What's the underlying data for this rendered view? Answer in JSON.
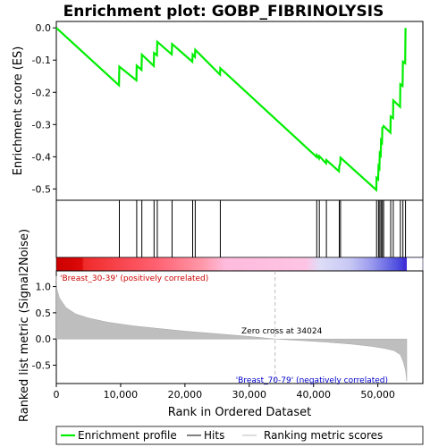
{
  "chart_data": {
    "type": "line",
    "title": "Enrichment plot: GOBP_FIBRINOLYSIS",
    "xlabel": "Rank in Ordered Dataset",
    "ylabel_top": "Enrichment score (ES)",
    "ylabel_bottom": "Ranked list metric (Signal2Noise)",
    "x_range": [
      0,
      57000
    ],
    "x_ticks": [
      0,
      10000,
      20000,
      30000,
      40000,
      50000
    ],
    "x_tick_labels": [
      "0",
      "10,000",
      "20,000",
      "30,000",
      "40,000",
      "50,000"
    ],
    "es_range": [
      -0.535,
      0.02
    ],
    "es_ticks": [
      0.0,
      -0.1,
      -0.2,
      -0.3,
      -0.4,
      -0.5
    ],
    "es_tick_labels": [
      "0.0",
      "-0.1",
      "-0.2",
      "-0.3",
      "-0.4",
      "-0.5"
    ],
    "metric_range": [
      -0.85,
      1.3
    ],
    "metric_ticks": [
      1.0,
      0.5,
      0.0,
      -0.5
    ],
    "metric_tick_labels": [
      "1.0",
      "0.5",
      "0.0",
      "-0.5"
    ],
    "total_ranks": 54500,
    "hits": [
      9800,
      12500,
      13300,
      15200,
      15700,
      18000,
      21200,
      21600,
      25500,
      40500,
      40900,
      42000,
      44000,
      44200,
      49800,
      50100,
      50300,
      50500,
      50700,
      50900,
      52000,
      52400,
      53500,
      53900,
      54300
    ],
    "es_curve": [
      [
        0,
        0.0
      ],
      [
        9750,
        -0.178
      ],
      [
        9800,
        -0.12
      ],
      [
        12450,
        -0.163
      ],
      [
        12500,
        -0.117
      ],
      [
        13250,
        -0.13
      ],
      [
        13300,
        -0.083
      ],
      [
        15150,
        -0.118
      ],
      [
        15200,
        -0.078
      ],
      [
        15650,
        -0.085
      ],
      [
        15700,
        -0.043
      ],
      [
        17950,
        -0.082
      ],
      [
        18000,
        -0.05
      ],
      [
        21150,
        -0.105
      ],
      [
        21200,
        -0.082
      ],
      [
        21550,
        -0.09
      ],
      [
        21600,
        -0.068
      ],
      [
        25450,
        -0.145
      ],
      [
        25500,
        -0.125
      ],
      [
        40450,
        -0.4
      ],
      [
        40500,
        -0.395
      ],
      [
        40850,
        -0.405
      ],
      [
        40900,
        -0.398
      ],
      [
        41950,
        -0.42
      ],
      [
        42000,
        -0.41
      ],
      [
        43950,
        -0.445
      ],
      [
        44000,
        -0.43
      ],
      [
        44150,
        -0.42
      ],
      [
        44200,
        -0.403
      ],
      [
        49750,
        -0.503
      ],
      [
        49800,
        -0.465
      ],
      [
        50050,
        -0.47
      ],
      [
        50100,
        -0.43
      ],
      [
        50250,
        -0.435
      ],
      [
        50300,
        -0.39
      ],
      [
        50450,
        -0.395
      ],
      [
        50500,
        -0.35
      ],
      [
        50650,
        -0.355
      ],
      [
        50700,
        -0.31
      ],
      [
        50850,
        -0.308
      ],
      [
        50900,
        -0.305
      ],
      [
        51950,
        -0.325
      ],
      [
        52000,
        -0.275
      ],
      [
        52350,
        -0.28
      ],
      [
        52400,
        -0.225
      ],
      [
        53450,
        -0.245
      ],
      [
        53500,
        -0.175
      ],
      [
        53850,
        -0.18
      ],
      [
        53900,
        -0.105
      ],
      [
        54250,
        -0.11
      ],
      [
        54300,
        0.0
      ]
    ],
    "metric_curve": [
      [
        0,
        1.2
      ],
      [
        100,
        0.95
      ],
      [
        500,
        0.78
      ],
      [
        1500,
        0.6
      ],
      [
        3000,
        0.48
      ],
      [
        5000,
        0.4
      ],
      [
        8000,
        0.32
      ],
      [
        12000,
        0.25
      ],
      [
        16000,
        0.2
      ],
      [
        20000,
        0.15
      ],
      [
        25000,
        0.1
      ],
      [
        30000,
        0.05
      ],
      [
        34024,
        0.0
      ],
      [
        38000,
        -0.03
      ],
      [
        42000,
        -0.06
      ],
      [
        46000,
        -0.1
      ],
      [
        49000,
        -0.14
      ],
      [
        51000,
        -0.18
      ],
      [
        52500,
        -0.22
      ],
      [
        53500,
        -0.3
      ],
      [
        54000,
        -0.45
      ],
      [
        54300,
        -0.6
      ],
      [
        54500,
        -0.8
      ]
    ],
    "zero_cross_rank": 34024,
    "zero_cross_label": "Zero cross at 34024",
    "positive_label": "'Breast_30-39' (positively correlated)",
    "negative_label": "'Breast_70-79' (negatively correlated)",
    "legend": [
      "Enrichment profile",
      "Hits",
      "Ranking metric scores"
    ],
    "colors": {
      "es_line": "#00ee00",
      "hit_line": "#000000",
      "metric_fill": "#bebebe",
      "positive_text": "#cc0000",
      "negative_text": "#0000cc",
      "heat_red": "#ee1111",
      "heat_pink": "#ffaacc",
      "heat_blue": "#2200cc"
    }
  }
}
